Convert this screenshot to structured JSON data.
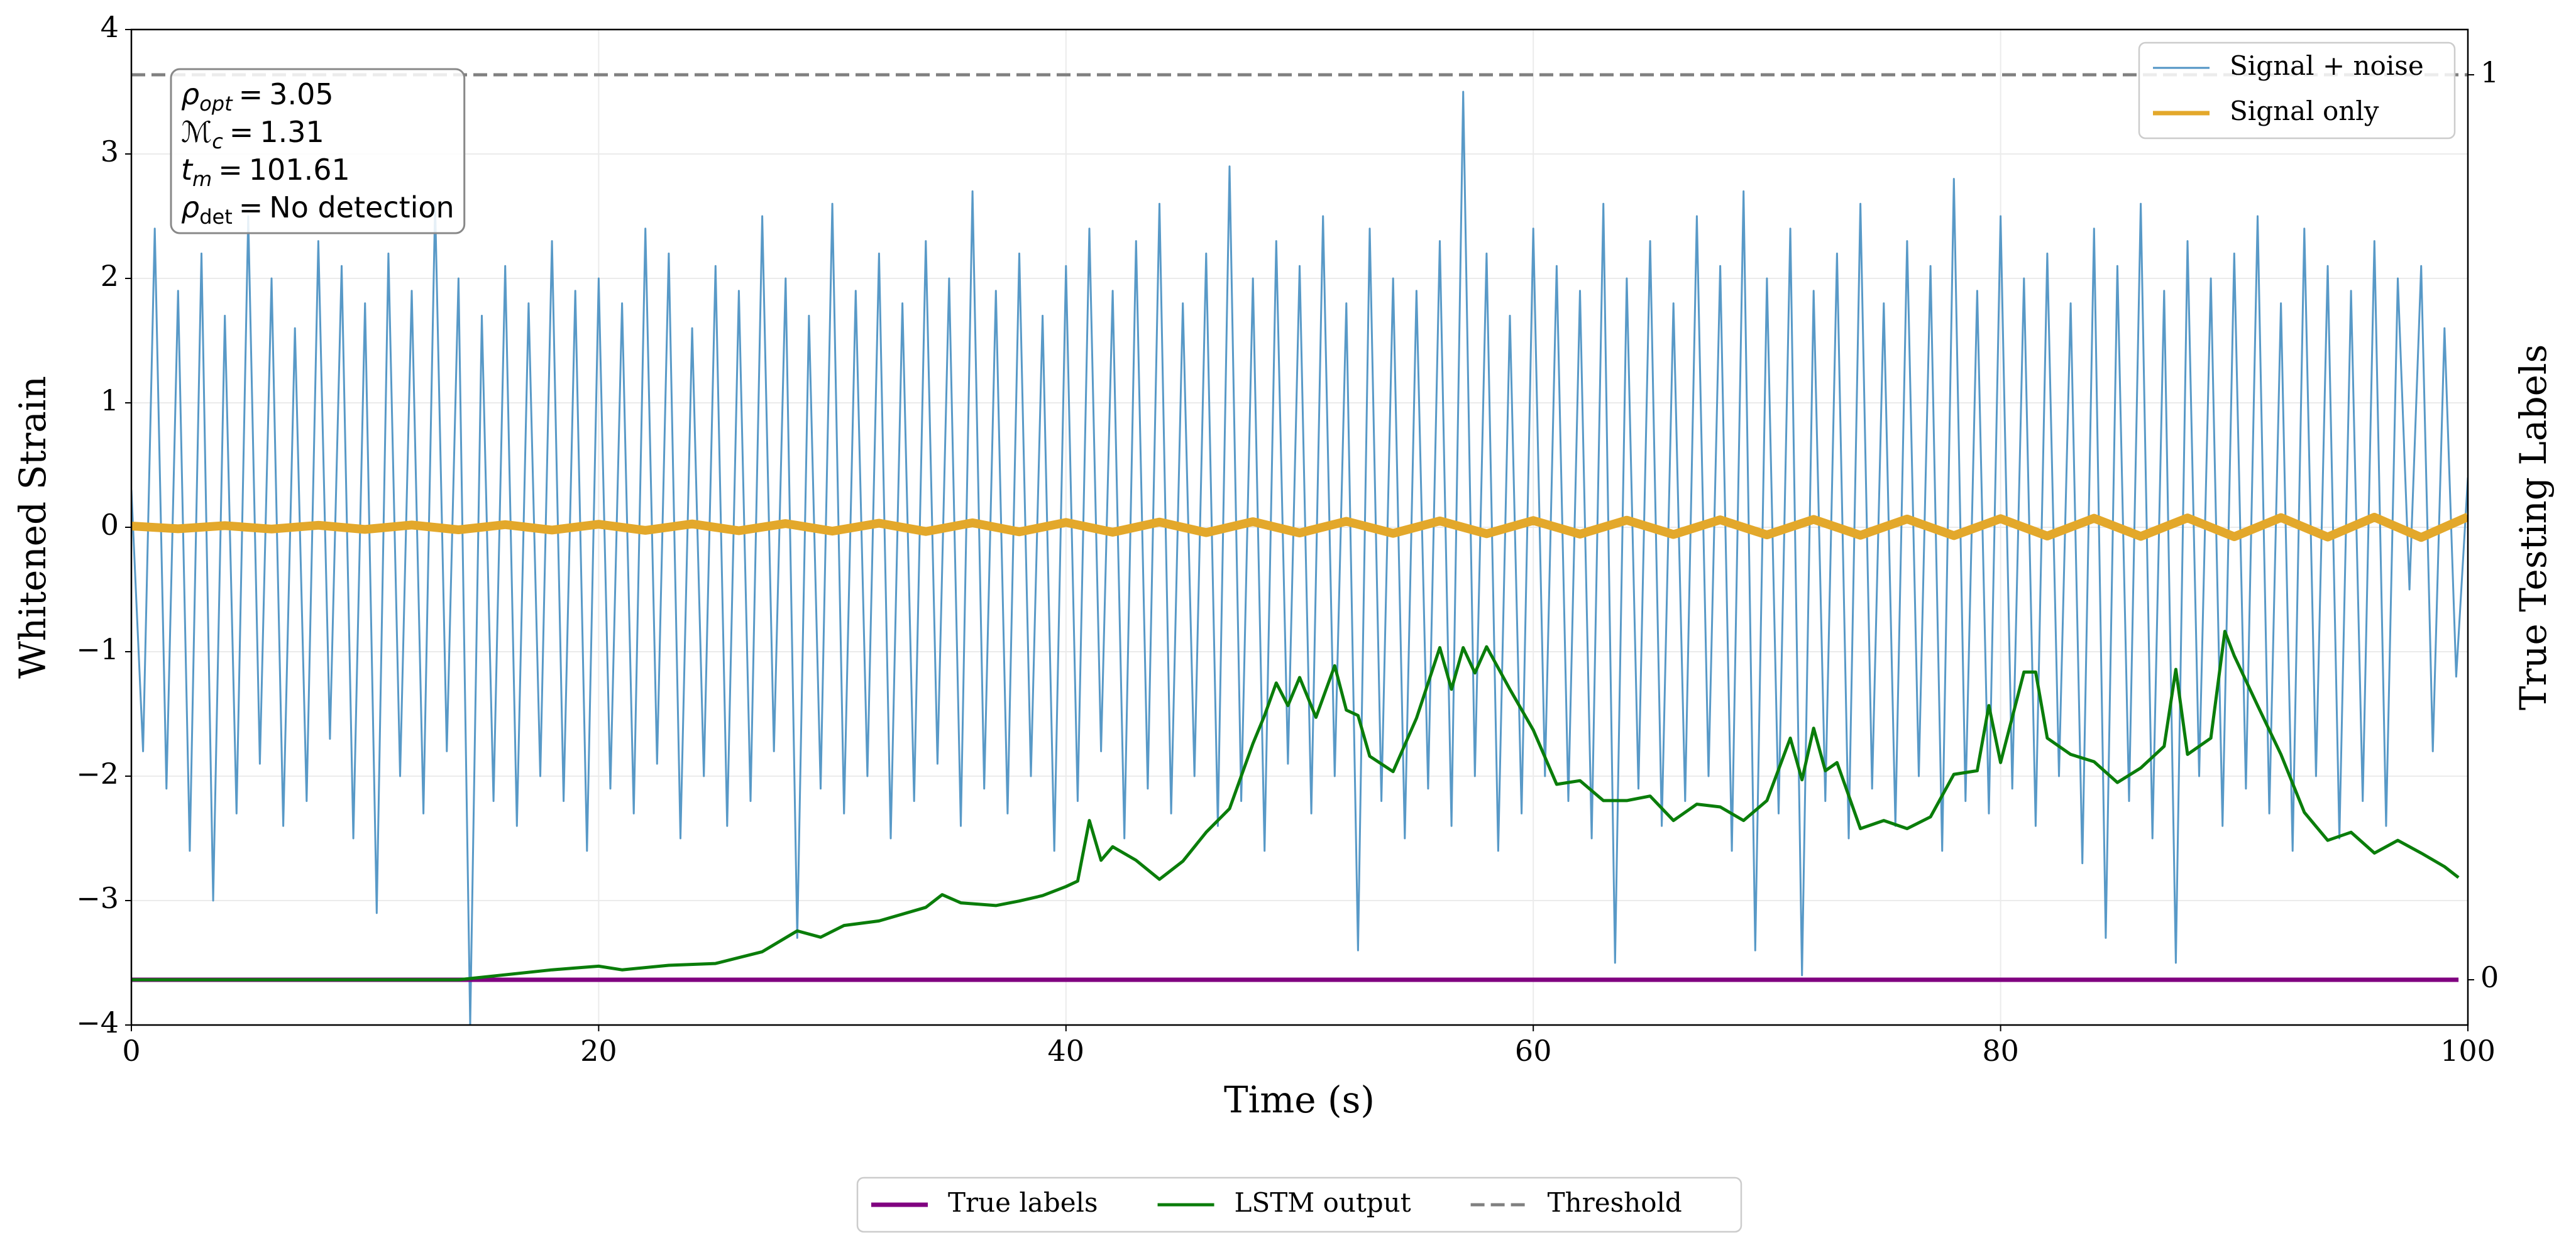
{
  "chart_data": {
    "type": "line",
    "xlabel": "Time (s)",
    "ylabel": "Whitened Strain",
    "y2label": "True Testing Labels",
    "xlim": [
      0,
      100
    ],
    "xticks": [
      0,
      20,
      40,
      60,
      80,
      100
    ],
    "ylim": [
      -4,
      4
    ],
    "yticks": [
      {
        "value": -4,
        "label": "−4"
      },
      {
        "value": -3,
        "label": "−3"
      },
      {
        "value": -2,
        "label": "−2"
      },
      {
        "value": -1,
        "label": "−1"
      },
      0,
      1,
      2,
      3,
      4
    ],
    "y2lim": [
      -0.05,
      1.05
    ],
    "y2ticks": [
      0,
      1
    ],
    "grid": true,
    "annotation_operator": "=",
    "annotations": [
      {
        "symbol": "ρ",
        "subscript": "opt",
        "value": 3.05
      },
      {
        "symbol": "ℳ",
        "subscript": "c",
        "value": 1.31
      },
      {
        "symbol": "t",
        "subscript": "m",
        "value": 101.61
      },
      {
        "symbol": "ρ",
        "subscript": "det",
        "value": "No detection"
      }
    ],
    "series": [
      {
        "name": "Signal + noise",
        "color": "#4f93c4",
        "axis": "y",
        "legend": "upper right",
        "dash": "solid",
        "width": 3,
        "x": [
          0,
          0.5,
          1,
          1.5,
          2,
          2.5,
          3,
          3.5,
          4,
          4.5,
          5,
          5.5,
          6,
          6.5,
          7,
          7.5,
          8,
          8.5,
          9,
          9.5,
          10,
          10.5,
          11,
          11.5,
          12,
          12.5,
          13,
          13.5,
          14,
          14.5,
          15,
          15.5,
          16,
          16.5,
          17,
          17.5,
          18,
          18.5,
          19,
          19.5,
          20,
          20.5,
          21,
          21.5,
          22,
          22.5,
          23,
          23.5,
          24,
          24.5,
          25,
          25.5,
          26,
          26.5,
          27,
          27.5,
          28,
          28.5,
          29,
          29.5,
          30,
          30.5,
          31,
          31.5,
          32,
          32.5,
          33,
          33.5,
          34,
          34.5,
          35,
          35.5,
          36,
          36.5,
          37,
          37.5,
          38,
          38.5,
          39,
          39.5,
          40,
          40.5,
          41,
          41.5,
          42,
          42.5,
          43,
          43.5,
          44,
          44.5,
          45,
          45.5,
          46,
          46.5,
          47,
          47.5,
          48,
          48.5,
          49,
          49.5,
          50,
          50.5,
          51,
          51.5,
          52,
          52.5,
          53,
          53.5,
          54,
          54.5,
          55,
          55.5,
          56,
          56.5,
          57,
          57.5,
          58,
          58.5,
          59,
          59.5,
          60,
          60.5,
          61,
          61.5,
          62,
          62.5,
          63,
          63.5,
          64,
          64.5,
          65,
          65.5,
          66,
          66.5,
          67,
          67.5,
          68,
          68.5,
          69,
          69.5,
          70,
          70.5,
          71,
          71.5,
          72,
          72.5,
          73,
          73.5,
          74,
          74.5,
          75,
          75.5,
          76,
          76.5,
          77,
          77.5,
          78,
          78.5,
          79,
          79.5,
          80,
          80.5,
          81,
          81.5,
          82,
          82.5,
          83,
          83.5,
          84,
          84.5,
          85,
          85.5,
          86,
          86.5,
          87,
          87.5,
          88,
          88.5,
          89,
          89.5,
          90,
          90.5,
          91,
          91.5,
          92,
          92.5,
          93,
          93.5,
          94,
          94.5,
          95,
          95.5,
          96,
          96.5,
          97,
          97.5,
          98,
          98.5,
          99,
          99.5,
          100
        ],
        "values": [
          0.3,
          -1.8,
          2.4,
          -2.1,
          1.9,
          -2.6,
          2.2,
          -3.0,
          1.7,
          -2.3,
          2.5,
          -1.9,
          2.0,
          -2.4,
          1.6,
          -2.2,
          2.3,
          -1.7,
          2.1,
          -2.5,
          1.8,
          -3.1,
          2.2,
          -2.0,
          1.9,
          -2.3,
          2.6,
          -1.8,
          2.0,
          -4.0,
          1.7,
          -2.2,
          2.1,
          -2.4,
          1.8,
          -2.0,
          2.3,
          -2.2,
          1.9,
          -2.6,
          2.0,
          -2.1,
          1.8,
          -2.3,
          2.4,
          -1.9,
          2.2,
          -2.5,
          1.6,
          -2.0,
          2.1,
          -2.4,
          1.9,
          -2.2,
          2.5,
          -1.8,
          2.0,
          -3.3,
          1.7,
          -2.1,
          2.6,
          -2.3,
          1.9,
          -2.0,
          2.2,
          -2.5,
          1.8,
          -2.2,
          2.3,
          -1.9,
          2.0,
          -2.4,
          2.7,
          -2.1,
          1.9,
          -2.3,
          2.2,
          -2.0,
          1.7,
          -2.6,
          2.1,
          -2.2,
          2.4,
          -1.8,
          1.9,
          -2.5,
          2.3,
          -2.1,
          2.6,
          -2.3,
          1.8,
          -2.0,
          2.2,
          -2.4,
          2.9,
          -2.2,
          2.0,
          -2.6,
          2.3,
          -1.9,
          2.1,
          -2.3,
          2.5,
          -2.0,
          1.8,
          -3.4,
          2.4,
          -2.2,
          2.0,
          -2.5,
          1.9,
          -2.1,
          2.3,
          -2.4,
          3.5,
          -2.0,
          2.2,
          -2.6,
          1.7,
          -2.3,
          2.4,
          -2.0,
          2.1,
          -2.2,
          1.9,
          -2.5,
          2.6,
          -3.5,
          2.0,
          -2.1,
          2.3,
          -2.4,
          1.8,
          -2.2,
          2.5,
          -2.0,
          2.1,
          -2.6,
          2.7,
          -3.4,
          2.0,
          -2.3,
          2.4,
          -3.6,
          1.9,
          -2.2,
          2.2,
          -2.5,
          2.6,
          -2.1,
          1.8,
          -2.4,
          2.3,
          -2.0,
          2.1,
          -2.6,
          2.8,
          -2.2,
          1.9,
          -2.3,
          2.5,
          -2.1,
          2.0,
          -2.4,
          2.2,
          -2.0,
          1.8,
          -2.7,
          2.4,
          -3.3,
          2.1,
          -2.2,
          2.6,
          -2.5,
          1.9,
          -3.5,
          2.3,
          -2.0,
          2.0,
          -2.4,
          2.2,
          -2.1,
          2.5,
          -2.3,
          1.8,
          -2.6,
          2.4,
          -2.0,
          2.1,
          -2.5,
          1.9,
          -2.2,
          2.3,
          -2.4,
          2.0,
          -0.5,
          2.1,
          -1.8,
          1.6,
          -1.2,
          0.4
        ]
      },
      {
        "name": "Signal only",
        "color": "#e3a82b",
        "axis": "y",
        "legend": "upper right",
        "dash": "solid",
        "width": 14,
        "x": [
          0,
          2,
          4,
          6,
          8,
          10,
          12,
          14,
          16,
          18,
          20,
          22,
          24,
          26,
          28,
          30,
          32,
          34,
          36,
          38,
          40,
          42,
          44,
          46,
          48,
          50,
          52,
          54,
          56,
          58,
          60,
          62,
          64,
          66,
          68,
          70,
          72,
          74,
          76,
          78,
          80,
          82,
          84,
          86,
          88,
          90,
          92,
          94,
          96,
          98,
          100
        ],
        "values": [
          0.01,
          -0.012,
          0.013,
          -0.014,
          0.016,
          -0.017,
          0.018,
          -0.02,
          0.021,
          -0.022,
          0.024,
          -0.025,
          0.027,
          -0.028,
          0.03,
          -0.031,
          0.033,
          -0.034,
          0.036,
          -0.037,
          0.039,
          -0.04,
          0.042,
          -0.043,
          0.045,
          -0.046,
          0.048,
          -0.049,
          0.051,
          -0.052,
          0.054,
          -0.055,
          0.057,
          -0.058,
          0.06,
          -0.061,
          0.063,
          -0.064,
          0.066,
          -0.067,
          0.069,
          -0.07,
          0.072,
          -0.073,
          0.075,
          -0.076,
          0.078,
          -0.079,
          0.081,
          -0.082,
          0.084
        ]
      },
      {
        "name": "True labels",
        "color": "#800080",
        "axis": "y2",
        "legend": "lower center",
        "dash": "solid",
        "width": 7,
        "x": [
          0,
          99.6
        ],
        "values": [
          0,
          0
        ]
      },
      {
        "name": "LSTM output",
        "color": "#0a7d0a",
        "axis": "y2",
        "legend": "lower center",
        "dash": "solid",
        "width": 5,
        "x": [
          0,
          14,
          18,
          19,
          20,
          21,
          23,
          25,
          27,
          28.5,
          29.5,
          30.5,
          32,
          34,
          34.7,
          35.5,
          37,
          38,
          39,
          40,
          40.5,
          41,
          41.5,
          42,
          43,
          44,
          45,
          46,
          47,
          48,
          48.5,
          49,
          49.5,
          50,
          50.7,
          51.5,
          52,
          52.5,
          53,
          54,
          55,
          56,
          56.5,
          57,
          57.5,
          58,
          59,
          60,
          61,
          62,
          63,
          64,
          65,
          66,
          67,
          68,
          69,
          70,
          71,
          71.5,
          72,
          72.5,
          73,
          74,
          75,
          76,
          77,
          78,
          79,
          79.5,
          80,
          81,
          81.5,
          82,
          83,
          84,
          85,
          86,
          87,
          87.5,
          88,
          89,
          89.6,
          90,
          91,
          92,
          93,
          94,
          95,
          96,
          97,
          98,
          99,
          99.6
        ],
        "values": [
          0,
          0,
          0.011,
          0.013,
          0.015,
          0.011,
          0.016,
          0.018,
          0.031,
          0.054,
          0.047,
          0.06,
          0.065,
          0.08,
          0.094,
          0.085,
          0.082,
          0.087,
          0.093,
          0.103,
          0.109,
          0.176,
          0.132,
          0.147,
          0.132,
          0.111,
          0.131,
          0.163,
          0.189,
          0.261,
          0.292,
          0.328,
          0.303,
          0.334,
          0.29,
          0.347,
          0.298,
          0.292,
          0.247,
          0.23,
          0.289,
          0.367,
          0.321,
          0.367,
          0.339,
          0.368,
          0.321,
          0.276,
          0.216,
          0.22,
          0.198,
          0.198,
          0.203,
          0.176,
          0.194,
          0.191,
          0.176,
          0.198,
          0.267,
          0.221,
          0.278,
          0.231,
          0.24,
          0.167,
          0.176,
          0.167,
          0.18,
          0.227,
          0.231,
          0.303,
          0.24,
          0.34,
          0.34,
          0.267,
          0.249,
          0.241,
          0.218,
          0.234,
          0.258,
          0.343,
          0.249,
          0.267,
          0.385,
          0.358,
          0.303,
          0.249,
          0.185,
          0.154,
          0.163,
          0.14,
          0.154,
          0.14,
          0.125,
          0.113
        ]
      },
      {
        "name": "Threshold",
        "color": "#808080",
        "axis": "y2",
        "legend": "lower center",
        "dash": "dashed",
        "width": 5,
        "x": [
          0,
          100
        ],
        "values": [
          1,
          1
        ]
      }
    ]
  }
}
